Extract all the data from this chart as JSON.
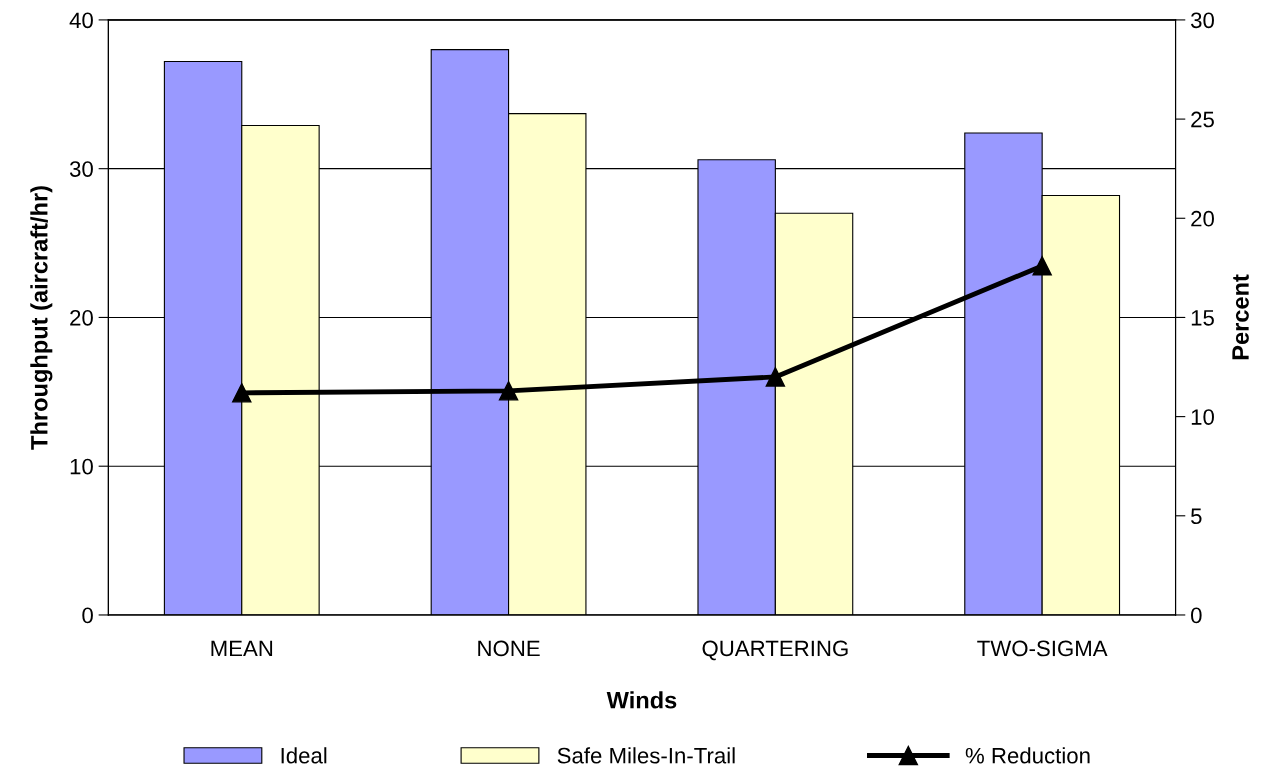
{
  "chart_data": {
    "type": "bar",
    "xlabel": "Winds",
    "ylabel": "Throughput (aircraft/hr)",
    "y2label": "Percent",
    "categories": [
      "MEAN",
      "NONE",
      "QUARTERING",
      "TWO-SIGMA"
    ],
    "series": [
      {
        "name": "Ideal",
        "color": "#9999ff",
        "values": [
          37.2,
          38.0,
          30.6,
          32.4
        ]
      },
      {
        "name": "Safe Miles-In-Trail",
        "color": "#ffffcc",
        "values": [
          32.9,
          33.7,
          27.0,
          28.2
        ]
      },
      {
        "name": "% Reduction",
        "type": "line",
        "axis": "y2",
        "color": "#000000",
        "marker": "triangle",
        "values": [
          11.2,
          11.3,
          12.0,
          17.6
        ]
      }
    ],
    "ylim": [
      0,
      40
    ],
    "yticks": [
      0,
      10,
      20,
      30,
      40
    ],
    "y2lim": [
      0,
      30
    ],
    "y2ticks": [
      0,
      5,
      10,
      15,
      20,
      25,
      30
    ],
    "grid": "y",
    "legend": "bottom"
  }
}
